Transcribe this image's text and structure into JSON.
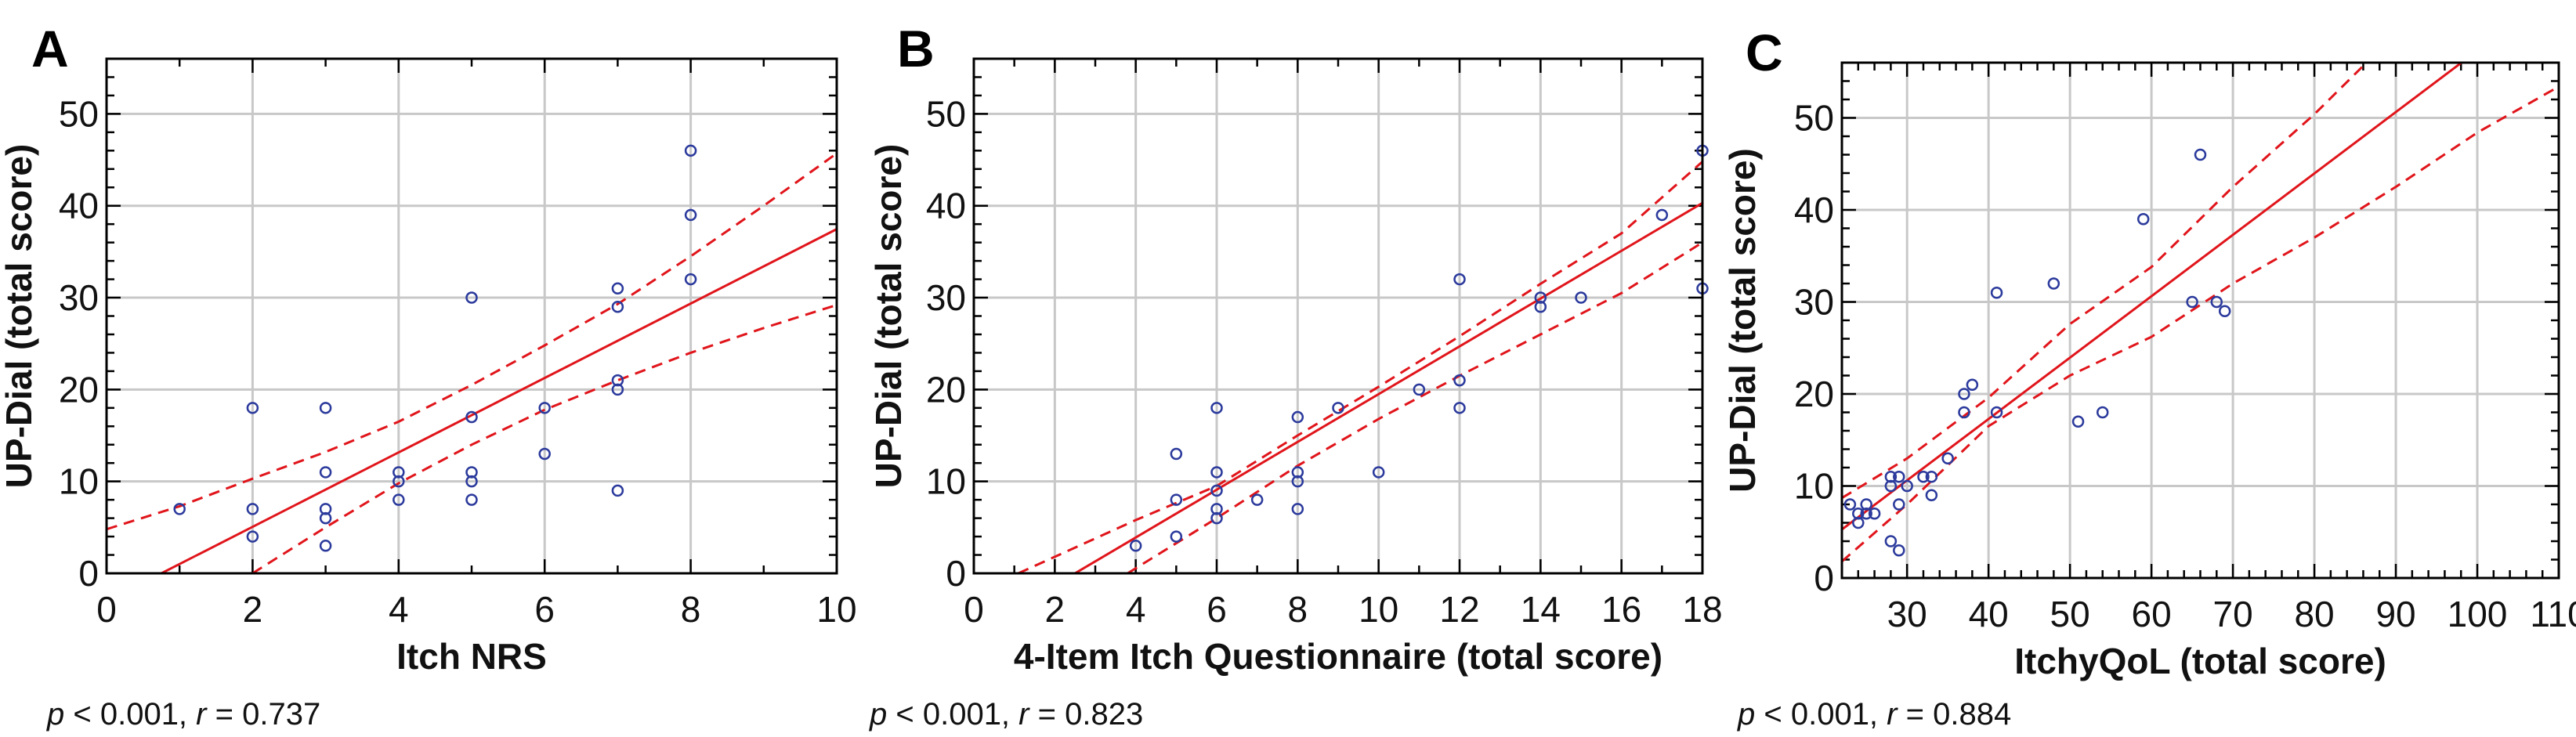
{
  "colors": {
    "points": "#2b3a9c",
    "regression": "#e0151b",
    "grid": "#c8c8c8",
    "frame": "#000000"
  },
  "chart_data": [
    {
      "type": "scatter",
      "panel_label": "A",
      "xlabel": "Itch NRS",
      "ylabel": "UP-Dial (total score)",
      "stat_p": "p",
      "stat_mid": " < 0.001, ",
      "stat_r": "r",
      "stat_end": " = 0.737",
      "xlim": [
        0,
        10
      ],
      "ylim": [
        0,
        56
      ],
      "xticks": [
        0,
        2,
        4,
        6,
        8,
        10
      ],
      "xminor": 1,
      "yticks": [
        0,
        10,
        20,
        30,
        40,
        50
      ],
      "yminor": 2,
      "grid": true,
      "points": [
        [
          1,
          7
        ],
        [
          2,
          18
        ],
        [
          2,
          7
        ],
        [
          2,
          4
        ],
        [
          3,
          18
        ],
        [
          3,
          11
        ],
        [
          3,
          7
        ],
        [
          3,
          6
        ],
        [
          3,
          3
        ],
        [
          4,
          11
        ],
        [
          4,
          10
        ],
        [
          4,
          8
        ],
        [
          5,
          30
        ],
        [
          5,
          17
        ],
        [
          5,
          11
        ],
        [
          5,
          10
        ],
        [
          5,
          8
        ],
        [
          6,
          18
        ],
        [
          6,
          13
        ],
        [
          7,
          31
        ],
        [
          7,
          29
        ],
        [
          7,
          21
        ],
        [
          7,
          20
        ],
        [
          7,
          9
        ],
        [
          8,
          46
        ],
        [
          8,
          39
        ],
        [
          8,
          32
        ]
      ],
      "regression": {
        "slope": 4.05,
        "intercept": -3.04
      },
      "ci_upper": [
        [
          0,
          4.8
        ],
        [
          1,
          7.3
        ],
        [
          2,
          10.3
        ],
        [
          3,
          13.2
        ],
        [
          4,
          16.5
        ],
        [
          5,
          20.5
        ],
        [
          6,
          24.8
        ],
        [
          7,
          29.3
        ],
        [
          8,
          34.5
        ],
        [
          9,
          40
        ],
        [
          10,
          45.7
        ]
      ],
      "ci_lower": [
        [
          2,
          0
        ],
        [
          3,
          5
        ],
        [
          4,
          9.8
        ],
        [
          5,
          14
        ],
        [
          6,
          17.8
        ],
        [
          7,
          21
        ],
        [
          8,
          24
        ],
        [
          9,
          26.7
        ],
        [
          10,
          29.2
        ]
      ]
    },
    {
      "type": "scatter",
      "panel_label": "B",
      "xlabel": "4-Item Itch Questionnaire (total score)",
      "ylabel": "UP-Dial (total score)",
      "stat_p": "p",
      "stat_mid": " < 0.001, ",
      "stat_r": "r",
      "stat_end": " = 0.823",
      "xlim": [
        0,
        18
      ],
      "ylim": [
        0,
        56
      ],
      "xticks": [
        0,
        2,
        4,
        6,
        8,
        10,
        12,
        14,
        16,
        18
      ],
      "xminor": 1,
      "yticks": [
        0,
        10,
        20,
        30,
        40,
        50
      ],
      "yminor": 2,
      "grid": true,
      "points": [
        [
          4,
          3
        ],
        [
          5,
          13
        ],
        [
          5,
          8
        ],
        [
          5,
          4
        ],
        [
          6,
          18
        ],
        [
          6,
          11
        ],
        [
          6,
          9
        ],
        [
          6,
          7
        ],
        [
          6,
          6
        ],
        [
          7,
          8
        ],
        [
          8,
          17
        ],
        [
          8,
          11
        ],
        [
          8,
          10
        ],
        [
          8,
          7
        ],
        [
          9,
          18
        ],
        [
          10,
          11
        ],
        [
          11,
          20
        ],
        [
          12,
          32
        ],
        [
          12,
          21
        ],
        [
          12,
          18
        ],
        [
          14,
          30
        ],
        [
          14,
          29
        ],
        [
          15,
          30
        ],
        [
          17,
          39
        ],
        [
          18,
          46
        ],
        [
          18,
          31
        ]
      ],
      "regression": {
        "slope": 2.6,
        "intercept": -6.5
      },
      "ci_upper": [
        [
          1.1,
          0
        ],
        [
          4,
          5.8
        ],
        [
          6,
          9.5
        ],
        [
          8,
          15
        ],
        [
          10,
          20.3
        ],
        [
          12,
          25.8
        ],
        [
          14,
          31.5
        ],
        [
          16,
          37
        ],
        [
          18,
          44.8
        ]
      ],
      "ci_lower": [
        [
          3.8,
          0
        ],
        [
          6,
          6
        ],
        [
          8,
          11.7
        ],
        [
          10,
          16.8
        ],
        [
          12,
          21.5
        ],
        [
          14,
          26
        ],
        [
          16,
          30.5
        ],
        [
          18,
          36
        ]
      ]
    },
    {
      "type": "scatter",
      "panel_label": "C",
      "xlabel": "ItchyQoL (total score)",
      "ylabel": "UP-Dial (total score)",
      "stat_p": "p",
      "stat_mid": " < 0.001, ",
      "stat_r": "r",
      "stat_end": " = 0.884",
      "xlim": [
        22,
        110
      ],
      "ylim": [
        0,
        56
      ],
      "xticks": [
        30,
        40,
        50,
        60,
        70,
        80,
        90,
        100,
        110
      ],
      "xminor": 2,
      "yticks": [
        0,
        10,
        20,
        30,
        40,
        50
      ],
      "yminor": 2,
      "grid": true,
      "points": [
        [
          23,
          8
        ],
        [
          24,
          7
        ],
        [
          24,
          6
        ],
        [
          25,
          8
        ],
        [
          25,
          7
        ],
        [
          26,
          7
        ],
        [
          28,
          11
        ],
        [
          28,
          10
        ],
        [
          29,
          11
        ],
        [
          29,
          8
        ],
        [
          28,
          4
        ],
        [
          29,
          3
        ],
        [
          30,
          10
        ],
        [
          32,
          11
        ],
        [
          33,
          11
        ],
        [
          33,
          9
        ],
        [
          35,
          13
        ],
        [
          37,
          20
        ],
        [
          37,
          18
        ],
        [
          38,
          21
        ],
        [
          41,
          31
        ],
        [
          41,
          18
        ],
        [
          48,
          32
        ],
        [
          51,
          17
        ],
        [
          54,
          18
        ],
        [
          59,
          39
        ],
        [
          65,
          30
        ],
        [
          66,
          46
        ],
        [
          68,
          30
        ],
        [
          69,
          29
        ]
      ],
      "regression": {
        "slope": 0.667,
        "intercept": -9.4
      },
      "ci_upper": [
        [
          22,
          8.7
        ],
        [
          30,
          13
        ],
        [
          40,
          19.6
        ],
        [
          50,
          27.6
        ],
        [
          60,
          33.8
        ],
        [
          70,
          42.5
        ],
        [
          80,
          50.4
        ],
        [
          86.4,
          56
        ]
      ],
      "ci_lower": [
        [
          22,
          1.8
        ],
        [
          30,
          8
        ],
        [
          40,
          16.5
        ],
        [
          50,
          22
        ],
        [
          60,
          26.2
        ],
        [
          70,
          32
        ],
        [
          80,
          37
        ],
        [
          90,
          42.5
        ],
        [
          100,
          48.4
        ],
        [
          110,
          53.4
        ]
      ]
    }
  ]
}
